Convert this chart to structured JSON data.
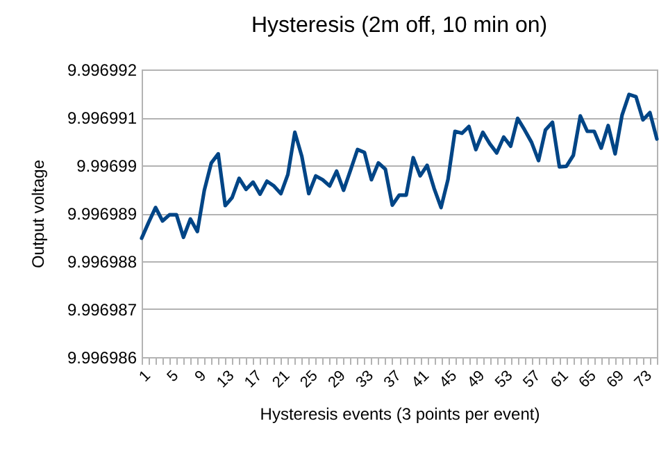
{
  "chart_data": {
    "type": "line",
    "title": "Hysteresis (2m off, 10 min on)",
    "xlabel": "Hysteresis events (3 points per event)",
    "ylabel": "Output voltage",
    "categories": [
      "1",
      null,
      null,
      null,
      "5",
      null,
      null,
      null,
      "9",
      null,
      null,
      null,
      "13",
      null,
      null,
      null,
      "17",
      null,
      null,
      null,
      "21",
      null,
      null,
      null,
      "25",
      null,
      null,
      null,
      "29",
      null,
      null,
      null,
      "33",
      null,
      null,
      null,
      "37",
      null,
      null,
      null,
      "41",
      null,
      null,
      null,
      "45",
      null,
      null,
      null,
      "49",
      null,
      null,
      null,
      "53",
      null,
      null,
      null,
      "57",
      null,
      null,
      null,
      "61",
      null,
      null,
      null,
      "65",
      null,
      null,
      null,
      "69",
      null,
      null,
      null,
      "73",
      null,
      null
    ],
    "series": [
      {
        "color": "#004586",
        "values": [
          9.99698848,
          9.99698881,
          9.99698912,
          9.99698884,
          9.99698897,
          9.99698897,
          9.9969885,
          9.99698888,
          9.99698862,
          9.99698948,
          9.99699005,
          9.99699024,
          9.99698916,
          9.99698933,
          9.99698973,
          9.9969895,
          9.99698965,
          9.9969894,
          9.99698967,
          9.99698957,
          9.99698941,
          9.99698981,
          9.99699069,
          9.99699019,
          9.99698941,
          9.99698978,
          9.9969897,
          9.99698957,
          9.99698988,
          9.99698948,
          9.9969899,
          9.99699033,
          9.99699027,
          9.9969897,
          9.99699005,
          9.99698992,
          9.99698917,
          9.99698938,
          9.99698938,
          9.99699016,
          9.99698978,
          9.99699,
          9.99698952,
          9.99698912,
          9.99698971,
          9.99699071,
          9.99699067,
          9.99699081,
          9.99699033,
          9.99699069,
          9.99699045,
          9.99699026,
          9.99699059,
          9.9969904,
          9.99699098,
          9.99699074,
          9.99699048,
          9.9969901,
          9.99699074,
          9.9969909,
          9.99698997,
          9.99698998,
          9.99699021,
          9.99699103,
          9.99699071,
          9.99699071,
          9.99699036,
          9.99699083,
          9.99699024,
          9.99699105,
          9.99699148,
          9.99699143,
          9.99699095,
          9.9969911,
          9.99699055
        ]
      }
    ],
    "ylim": [
      9.996986,
      9.996992
    ],
    "yticks": [
      9.996986,
      9.996987,
      9.996988,
      9.996989,
      9.99699,
      9.996991,
      9.996992
    ],
    "grid": "y",
    "legend": false,
    "marker": "none",
    "line_style": "solid"
  }
}
